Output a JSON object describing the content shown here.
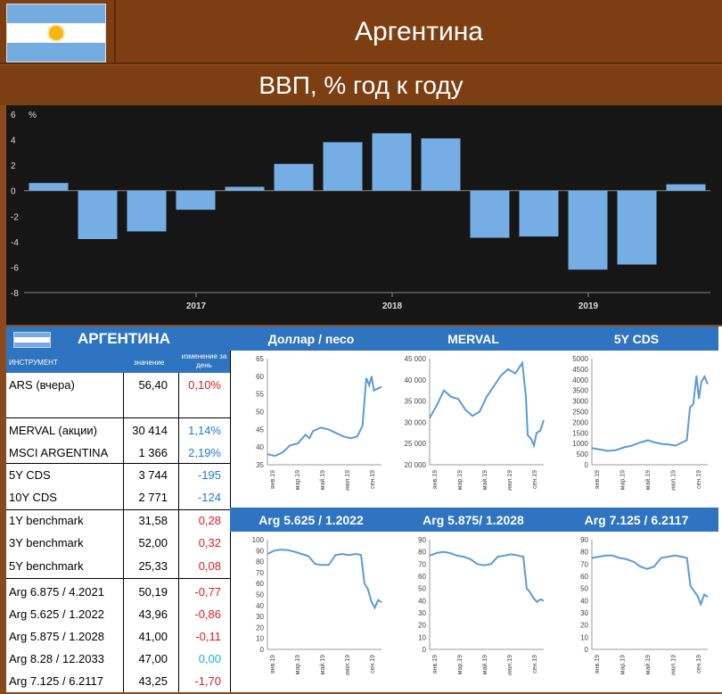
{
  "header": {
    "country": "Аргентина",
    "gdp_title": "ВВП, % год к году"
  },
  "chart_data": [
    {
      "type": "bar",
      "title": "ВВП, % год к году",
      "ylabel": "%",
      "ylim": [
        -8,
        6
      ],
      "yticks": [
        "6",
        "4",
        "2",
        "0",
        "-2",
        "-4",
        "-6",
        "-8"
      ],
      "xticks": [
        "2017",
        "2018",
        "2019"
      ],
      "values": [
        0.6,
        -3.8,
        -3.2,
        -1.5,
        0.3,
        2.1,
        3.8,
        4.5,
        4.1,
        -3.7,
        -3.6,
        -6.2,
        -5.8,
        0.5
      ],
      "color": "#74aee4"
    },
    {
      "type": "line",
      "title": "Доллар / песо",
      "ylim": [
        35,
        65
      ],
      "yticks": [
        "65",
        "60",
        "55",
        "50",
        "45",
        "40",
        "35"
      ],
      "xticks": [
        "янв.19",
        "мар.19",
        "май.19",
        "июл.19",
        "сен.19"
      ],
      "points": [
        [
          0,
          38
        ],
        [
          10,
          37.5
        ],
        [
          20,
          38.5
        ],
        [
          30,
          40.5
        ],
        [
          40,
          41
        ],
        [
          50,
          43.5
        ],
        [
          55,
          42.5
        ],
        [
          60,
          44.5
        ],
        [
          70,
          45.5
        ],
        [
          80,
          45
        ],
        [
          90,
          44
        ],
        [
          100,
          43
        ],
        [
          110,
          42.5
        ],
        [
          118,
          43
        ],
        [
          125,
          46
        ],
        [
          130,
          59.5
        ],
        [
          134,
          57.5
        ],
        [
          137,
          60
        ],
        [
          140,
          56
        ],
        [
          145,
          56.5
        ],
        [
          150,
          57
        ]
      ]
    },
    {
      "type": "line",
      "title": "MERVAL",
      "ylim": [
        20000,
        45000
      ],
      "yticks": [
        "45 000",
        "40 000",
        "35 000",
        "30 000",
        "25 000",
        "20 000"
      ],
      "xticks": [
        "янв.19",
        "мар.19",
        "май.19",
        "июл.19",
        "сен.19"
      ],
      "points": [
        [
          0,
          31000
        ],
        [
          8,
          34000
        ],
        [
          16,
          37500
        ],
        [
          24,
          36000
        ],
        [
          32,
          35500
        ],
        [
          40,
          33000
        ],
        [
          48,
          31500
        ],
        [
          56,
          32500
        ],
        [
          64,
          36000
        ],
        [
          72,
          38500
        ],
        [
          80,
          41000
        ],
        [
          88,
          42500
        ],
        [
          96,
          41500
        ],
        [
          104,
          44000
        ],
        [
          108,
          36000
        ],
        [
          110,
          27000
        ],
        [
          114,
          26000
        ],
        [
          117,
          24500
        ],
        [
          120,
          27500
        ],
        [
          124,
          28000
        ],
        [
          128,
          30500
        ]
      ]
    },
    {
      "type": "line",
      "title": "5Y CDS",
      "ylim": [
        0,
        5000
      ],
      "yticks": [
        "5000",
        "4500",
        "4000",
        "3500",
        "3000",
        "2500",
        "2000",
        "1500",
        "1000",
        "500",
        "0"
      ],
      "xticks": [
        "янв.19",
        "мар.19",
        "май.19",
        "июл.19",
        "сен.19"
      ],
      "points": [
        [
          0,
          780
        ],
        [
          10,
          720
        ],
        [
          20,
          650
        ],
        [
          30,
          690
        ],
        [
          40,
          820
        ],
        [
          50,
          900
        ],
        [
          60,
          1050
        ],
        [
          70,
          1150
        ],
        [
          78,
          1050
        ],
        [
          88,
          980
        ],
        [
          96,
          950
        ],
        [
          104,
          900
        ],
        [
          112,
          1050
        ],
        [
          118,
          1150
        ],
        [
          122,
          2700
        ],
        [
          126,
          2850
        ],
        [
          130,
          4200
        ],
        [
          133,
          3100
        ],
        [
          136,
          3900
        ],
        [
          140,
          4150
        ],
        [
          144,
          3800
        ]
      ]
    },
    {
      "type": "line",
      "title": "Arg 5.625 / 1.2022",
      "ylim": [
        0,
        100
      ],
      "yticks": [
        "100",
        "90",
        "80",
        "70",
        "60",
        "50",
        "40",
        "30",
        "20",
        "10",
        "0"
      ],
      "xticks": [
        "янв.19",
        "мар.19",
        "май.19",
        "июл.19",
        "сен.19"
      ],
      "points": [
        [
          0,
          87
        ],
        [
          8,
          90
        ],
        [
          16,
          91
        ],
        [
          24,
          90.5
        ],
        [
          32,
          89
        ],
        [
          40,
          87
        ],
        [
          48,
          85
        ],
        [
          56,
          78
        ],
        [
          62,
          77
        ],
        [
          72,
          77
        ],
        [
          80,
          86
        ],
        [
          88,
          87
        ],
        [
          96,
          86
        ],
        [
          104,
          87
        ],
        [
          110,
          86
        ],
        [
          114,
          60
        ],
        [
          118,
          55
        ],
        [
          122,
          44
        ],
        [
          126,
          38
        ],
        [
          130,
          45
        ],
        [
          134,
          43
        ]
      ]
    },
    {
      "type": "line",
      "title": "Arg 5.875/ 1.2028",
      "ylim": [
        0,
        90
      ],
      "yticks": [
        "90",
        "80",
        "70",
        "60",
        "50",
        "40",
        "30",
        "20",
        "10",
        "0"
      ],
      "xticks": [
        "янв.19",
        "мар.19",
        "май.19",
        "июл.19",
        "сен.19"
      ],
      "points": [
        [
          0,
          77
        ],
        [
          8,
          79
        ],
        [
          16,
          80
        ],
        [
          24,
          79
        ],
        [
          32,
          77
        ],
        [
          40,
          76
        ],
        [
          48,
          74
        ],
        [
          56,
          70
        ],
        [
          64,
          69
        ],
        [
          72,
          70
        ],
        [
          80,
          76
        ],
        [
          88,
          77
        ],
        [
          96,
          78
        ],
        [
          104,
          77
        ],
        [
          110,
          76
        ],
        [
          114,
          50
        ],
        [
          118,
          47
        ],
        [
          122,
          42
        ],
        [
          126,
          39
        ],
        [
          130,
          41
        ],
        [
          134,
          40
        ]
      ]
    },
    {
      "type": "line",
      "title": "Arg 7.125 / 6.2117",
      "ylim": [
        0,
        90
      ],
      "yticks": [
        "90",
        "80",
        "70",
        "60",
        "50",
        "40",
        "30",
        "20",
        "10",
        "0"
      ],
      "xticks": [
        "янв.19",
        "мар.19",
        "май.19",
        "июл.19",
        "сен.19"
      ],
      "points": [
        [
          0,
          75
        ],
        [
          8,
          76
        ],
        [
          16,
          77
        ],
        [
          24,
          77
        ],
        [
          32,
          75
        ],
        [
          40,
          74
        ],
        [
          48,
          72
        ],
        [
          56,
          68
        ],
        [
          64,
          66
        ],
        [
          72,
          68
        ],
        [
          80,
          75
        ],
        [
          88,
          76
        ],
        [
          96,
          77
        ],
        [
          104,
          76
        ],
        [
          110,
          75
        ],
        [
          114,
          52
        ],
        [
          118,
          48
        ],
        [
          122,
          44
        ],
        [
          126,
          37
        ],
        [
          130,
          45
        ],
        [
          134,
          43
        ]
      ]
    }
  ],
  "table": {
    "title": "АРГЕНТИНА",
    "col_instrument": "ИНСТРУМЕНТ",
    "col_value": "значение",
    "col_change": "изменение за день",
    "rows": [
      {
        "name": "ARS (вчера)",
        "value": "56,40",
        "change": "0,10%",
        "color": "#e11b1b"
      },
      {
        "name": "MERVAL (акции)",
        "value": "30 414",
        "change": "1,14%",
        "color": "#1f7ad2"
      },
      {
        "name": "MSCI ARGENTINA",
        "value": "1 366",
        "change": "2,19%",
        "color": "#1f7ad2"
      },
      {
        "name": "5Y CDS",
        "value": "3 744",
        "change": "-195",
        "color": "#1f7ad2"
      },
      {
        "name": "10Y CDS",
        "value": "2 771",
        "change": "-124",
        "color": "#1f7ad2"
      },
      {
        "name": "1Y benchmark",
        "value": "31,58",
        "change": "0,28",
        "color": "#e11b1b"
      },
      {
        "name": "3Y benchmark",
        "value": "52,00",
        "change": "0,32",
        "color": "#e11b1b"
      },
      {
        "name": "5Y benchmark",
        "value": "25,33",
        "change": "0,08",
        "color": "#e11b1b"
      },
      {
        "name": "Arg 6.875 / 4.2021",
        "value": "50,19",
        "change": "-0,77",
        "color": "#e11b1b"
      },
      {
        "name": "Arg 5.625 / 1.2022",
        "value": "43,96",
        "change": "-0,86",
        "color": "#e11b1b"
      },
      {
        "name": "Arg 5.875 / 1.2028",
        "value": "41,00",
        "change": "-0,11",
        "color": "#e11b1b"
      },
      {
        "name": "Arg 8.28 / 12.2033",
        "value": "47,00",
        "change": "0,00",
        "color": "#12b2e6"
      },
      {
        "name": "Arg 7.125 / 6.2117",
        "value": "43,25",
        "change": "-1,70",
        "color": "#e11b1b"
      }
    ]
  },
  "colors": {
    "brown": "#7d3f12",
    "blue_header": "#2f74c0",
    "bar": "#74aee4",
    "line": "#5b9bd5"
  }
}
